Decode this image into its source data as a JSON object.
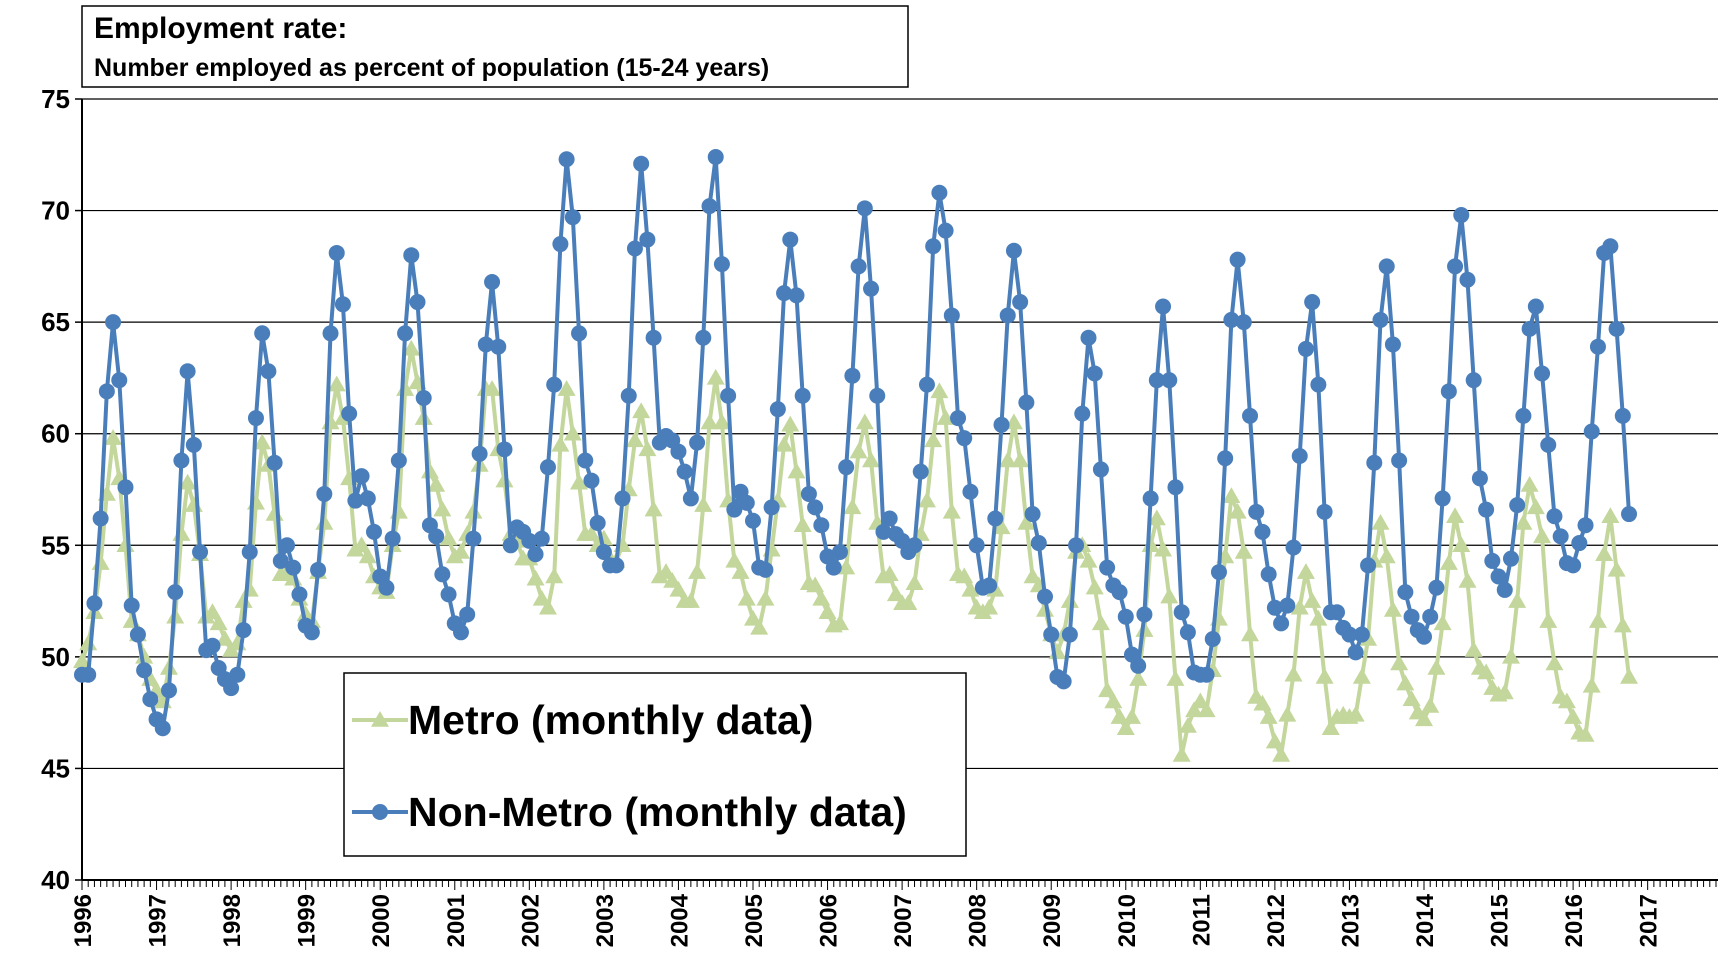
{
  "chart_data": {
    "type": "line",
    "title": "Employment rate:",
    "subtitle": "Number employed as percent of population (15-24 years)",
    "categories": [
      "1996",
      null,
      null,
      null,
      null,
      null,
      null,
      null,
      null,
      null,
      null,
      null,
      "1997",
      null,
      null,
      null,
      null,
      null,
      null,
      null,
      null,
      null,
      null,
      null,
      "1998",
      null,
      null,
      null,
      null,
      null,
      null,
      null,
      null,
      null,
      null,
      null,
      "1999",
      null,
      null,
      null,
      null,
      null,
      null,
      null,
      null,
      null,
      null,
      null,
      "2000",
      null,
      null,
      null,
      null,
      null,
      null,
      null,
      null,
      null,
      null,
      null,
      "2001",
      null,
      null,
      null,
      null,
      null,
      null,
      null,
      null,
      null,
      null,
      null,
      "2002",
      null,
      null,
      null,
      null,
      null,
      null,
      null,
      null,
      null,
      null,
      null,
      "2003",
      null,
      null,
      null,
      null,
      null,
      null,
      null,
      null,
      null,
      null,
      null,
      "2004",
      null,
      null,
      null,
      null,
      null,
      null,
      null,
      null,
      null,
      null,
      null,
      "2005",
      null,
      null,
      null,
      null,
      null,
      null,
      null,
      null,
      null,
      null,
      null,
      "2006",
      null,
      null,
      null,
      null,
      null,
      null,
      null,
      null,
      null,
      null,
      null,
      "2007",
      null,
      null,
      null,
      null,
      null,
      null,
      null,
      null,
      null,
      null,
      null,
      "2008",
      null,
      null,
      null,
      null,
      null,
      null,
      null,
      null,
      null,
      null,
      null,
      "2009",
      null,
      null,
      null,
      null,
      null,
      null,
      null,
      null,
      null,
      null,
      null,
      "2010",
      null,
      null,
      null,
      null,
      null,
      null,
      null,
      null,
      null,
      null,
      null,
      "2011",
      null,
      null,
      null,
      null,
      null,
      null,
      null,
      null,
      null,
      null,
      null,
      "2012",
      null,
      null,
      null,
      null,
      null,
      null,
      null,
      null,
      null,
      null,
      null,
      "2013",
      null,
      null,
      null,
      null,
      null,
      null,
      null,
      null,
      null,
      null,
      null,
      "2014",
      null,
      null,
      null,
      null,
      null,
      null,
      null,
      null,
      null,
      null,
      null,
      "2015",
      null,
      null,
      null,
      null,
      null,
      null,
      null,
      null,
      null,
      null,
      null,
      "2016",
      null,
      null,
      null,
      null,
      null,
      null,
      null,
      null,
      null,
      null,
      null,
      "2017",
      null,
      null,
      null,
      null,
      null,
      null,
      null,
      null,
      null,
      null,
      null
    ],
    "series": [
      {
        "name": "Metro (monthly data)",
        "color": "#c3d69b",
        "marker": "triangle",
        "values": [
          49.8,
          50.6,
          52.0,
          54.2,
          57.3,
          59.8,
          58.0,
          55.0,
          51.6,
          51.0,
          50.0,
          49.0,
          48.5,
          48.0,
          49.5,
          51.8,
          55.5,
          57.8,
          56.8,
          54.6,
          51.8,
          52.0,
          51.5,
          50.8,
          50.3,
          50.6,
          52.5,
          53.0,
          56.9,
          59.6,
          58.6,
          56.4,
          53.7,
          53.8,
          53.5,
          52.6,
          51.9,
          51.6,
          53.8,
          56.0,
          60.5,
          62.2,
          60.7,
          58.0,
          54.8,
          55.0,
          54.5,
          53.6,
          53.1,
          52.9,
          55.0,
          56.5,
          62.0,
          63.8,
          62.3,
          60.7,
          58.3,
          57.7,
          56.6,
          55.3,
          54.5,
          54.7,
          55.5,
          56.5,
          58.6,
          62.0,
          62.0,
          59.3,
          57.9,
          55.5,
          55.2,
          54.4,
          54.4,
          53.5,
          52.6,
          52.2,
          53.6,
          59.5,
          62.0,
          60.0,
          57.8,
          55.5,
          55.5,
          55.0,
          55.3,
          54.4,
          54.3,
          55.0,
          57.5,
          59.7,
          61.0,
          59.3,
          56.6,
          53.6,
          53.8,
          53.4,
          53.0,
          52.5,
          52.5,
          53.8,
          56.8,
          60.5,
          62.5,
          60.5,
          57.0,
          54.3,
          53.8,
          52.6,
          51.7,
          51.3,
          52.6,
          54.8,
          57.0,
          59.5,
          60.4,
          58.3,
          55.9,
          53.3,
          53.2,
          52.6,
          52.0,
          51.4,
          51.5,
          54.0,
          56.7,
          59.2,
          60.5,
          58.8,
          56.0,
          53.6,
          53.7,
          52.8,
          52.4,
          52.4,
          53.3,
          55.5,
          57.0,
          59.7,
          61.9,
          60.7,
          56.5,
          53.7,
          53.6,
          53.0,
          52.2,
          52.0,
          52.2,
          53.0,
          55.8,
          58.8,
          60.5,
          58.8,
          56.0,
          53.6,
          53.2,
          52.1,
          51.0,
          50.2,
          51.0,
          52.5,
          54.7,
          55.0,
          54.3,
          53.1,
          51.5,
          48.5,
          48.0,
          47.3,
          46.8,
          47.3,
          49.0,
          51.2,
          55.0,
          56.2,
          54.8,
          52.7,
          49.0,
          45.6,
          46.9,
          47.6,
          48.0,
          47.6,
          49.4,
          51.7,
          54.5,
          57.2,
          56.5,
          54.7,
          51.0,
          48.2,
          47.9,
          47.3,
          46.2,
          45.6,
          47.4,
          49.2,
          52.2,
          53.8,
          52.5,
          51.7,
          49.1,
          46.8,
          47.3,
          47.4,
          47.3,
          47.4,
          49.1,
          50.8,
          54.3,
          56.0,
          54.5,
          52.1,
          49.7,
          48.8,
          48.1,
          47.5,
          47.2,
          47.8,
          49.5,
          51.5,
          54.2,
          56.3,
          55.0,
          53.4,
          50.3,
          49.5,
          49.3,
          48.6,
          48.3,
          48.4,
          50.0,
          52.5,
          56.0,
          57.7,
          56.7,
          55.4,
          51.6,
          49.7,
          48.2,
          48.0,
          47.3,
          46.6,
          46.5,
          48.7,
          51.6,
          54.6,
          56.3,
          53.9,
          51.4,
          49.1,
          null,
          null,
          null,
          null,
          null,
          null,
          null,
          null,
          null,
          null,
          null,
          null,
          null,
          null
        ]
      },
      {
        "name": "Non-Metro (monthly data)",
        "color": "#4a7ebb",
        "marker": "circle",
        "values": [
          49.2,
          49.2,
          52.4,
          56.2,
          61.9,
          65.0,
          62.4,
          57.6,
          52.3,
          51.0,
          49.4,
          48.1,
          47.2,
          46.8,
          48.5,
          52.9,
          58.8,
          62.8,
          59.5,
          54.7,
          50.3,
          50.5,
          49.5,
          49.0,
          48.6,
          49.2,
          51.2,
          54.7,
          60.7,
          64.5,
          62.8,
          58.7,
          54.3,
          55.0,
          54.0,
          52.8,
          51.4,
          51.1,
          53.9,
          57.3,
          64.5,
          68.1,
          65.8,
          60.9,
          57.0,
          58.1,
          57.1,
          55.6,
          53.6,
          53.1,
          55.3,
          58.8,
          64.5,
          68.0,
          65.9,
          61.6,
          55.9,
          55.4,
          53.7,
          52.8,
          51.5,
          51.1,
          51.9,
          55.3,
          59.1,
          64.0,
          66.8,
          63.9,
          59.3,
          55.0,
          55.8,
          55.6,
          55.2,
          54.6,
          55.3,
          58.5,
          62.2,
          68.5,
          72.3,
          69.7,
          64.5,
          58.8,
          57.9,
          56.0,
          54.7,
          54.1,
          54.1,
          57.1,
          61.7,
          68.3,
          72.1,
          68.7,
          64.3,
          59.6,
          59.9,
          59.7,
          59.2,
          58.3,
          57.1,
          59.6,
          64.3,
          70.2,
          72.4,
          67.6,
          61.7,
          56.6,
          57.4,
          56.9,
          56.1,
          54.0,
          53.9,
          56.7,
          61.1,
          66.3,
          68.7,
          66.2,
          61.7,
          57.3,
          56.7,
          55.9,
          54.5,
          54.0,
          54.7,
          58.5,
          62.6,
          67.5,
          70.1,
          66.5,
          61.7,
          55.6,
          56.2,
          55.5,
          55.2,
          54.7,
          55.0,
          58.3,
          62.2,
          68.4,
          70.8,
          69.1,
          65.3,
          60.7,
          59.8,
          57.4,
          55.0,
          53.1,
          53.2,
          56.2,
          60.4,
          65.3,
          68.2,
          65.9,
          61.4,
          56.4,
          55.1,
          52.7,
          51.0,
          49.1,
          48.9,
          51.0,
          55.0,
          60.9,
          64.3,
          62.7,
          58.4,
          54.0,
          53.2,
          52.9,
          51.8,
          50.1,
          49.6,
          51.9,
          57.1,
          62.4,
          65.7,
          62.4,
          57.6,
          52.0,
          51.1,
          49.3,
          49.2,
          49.2,
          50.8,
          53.8,
          58.9,
          65.1,
          67.8,
          65.0,
          60.8,
          56.5,
          55.6,
          53.7,
          52.2,
          51.5,
          52.3,
          54.9,
          59.0,
          63.8,
          65.9,
          62.2,
          56.5,
          52.0,
          52.0,
          51.3,
          51.0,
          50.2,
          51.0,
          54.1,
          58.7,
          65.1,
          67.5,
          64.0,
          58.8,
          52.9,
          51.8,
          51.2,
          50.9,
          51.8,
          53.1,
          57.1,
          61.9,
          67.5,
          69.8,
          66.9,
          62.4,
          58.0,
          56.6,
          54.3,
          53.6,
          53.0,
          54.4,
          56.8,
          60.8,
          64.7,
          65.7,
          62.7,
          59.5,
          56.3,
          55.4,
          54.2,
          54.1,
          55.1,
          55.9,
          60.1,
          63.9,
          68.1,
          68.4,
          64.7,
          60.8,
          56.4,
          null,
          null,
          null,
          null,
          null,
          null,
          null,
          null,
          null,
          null,
          null,
          null,
          null,
          null
        ]
      }
    ],
    "ylim": [
      40,
      75
    ],
    "yticks": [
      40,
      45,
      50,
      55,
      60,
      65,
      70,
      75
    ],
    "grid": true
  }
}
